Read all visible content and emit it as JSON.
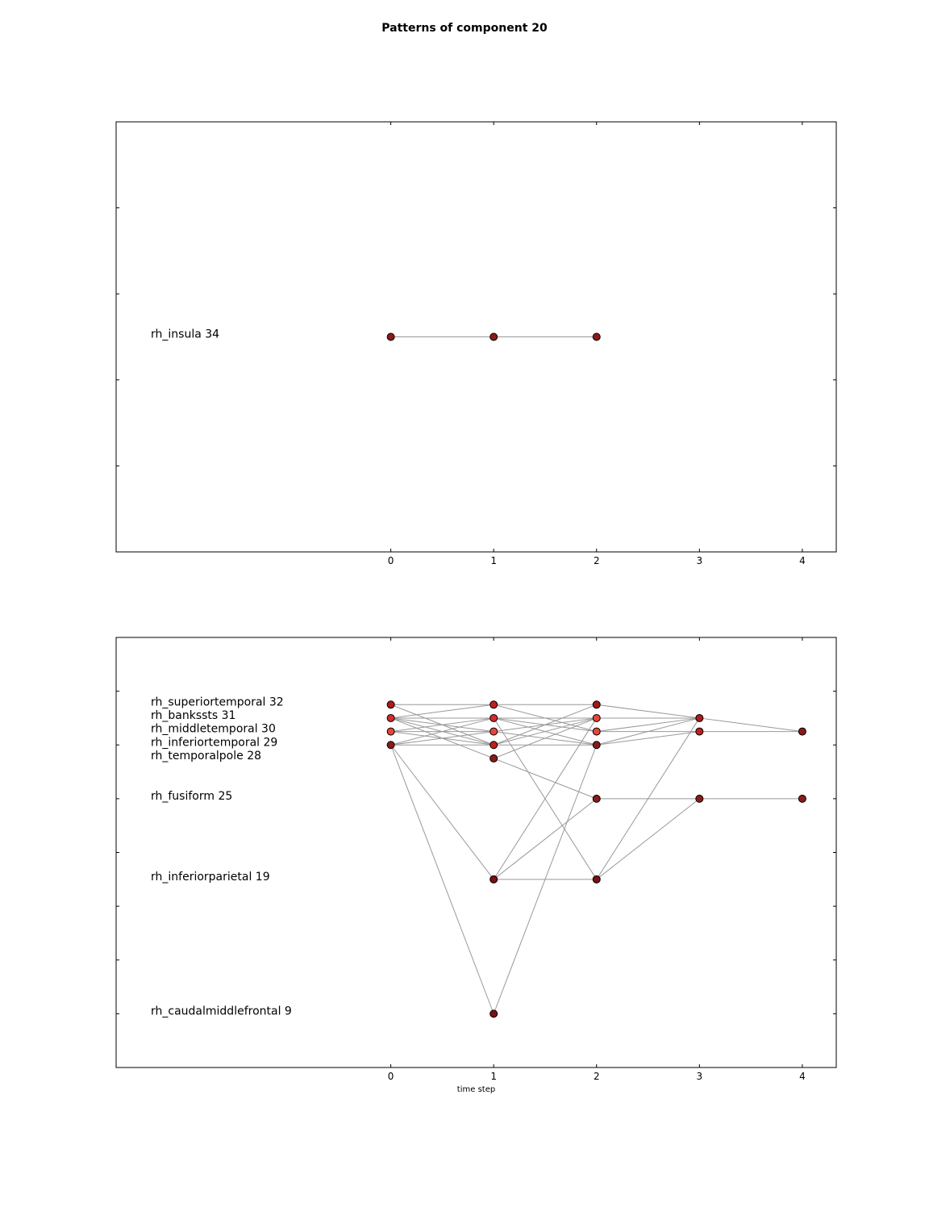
{
  "figure_title": "Patterns of component 20",
  "chart_data": [
    {
      "type": "scatter",
      "subtype": "network",
      "xlabel": "",
      "xticks": [
        0,
        1,
        2,
        3,
        4
      ],
      "xlim": [
        -2.67,
        4.33
      ],
      "ylim": [
        29,
        39
      ],
      "y_tick_count": 4,
      "node_fill": "#8b1a1a",
      "edge_color": "#999999",
      "labels": [
        {
          "text": "rh_insula 34",
          "y": 34
        }
      ],
      "nodes": [
        {
          "x": 0,
          "y": 34,
          "color": "#8b1a1a"
        },
        {
          "x": 1,
          "y": 34,
          "color": "#8b1a1a"
        },
        {
          "x": 2,
          "y": 34,
          "color": "#8b1a1a"
        }
      ],
      "edges": [
        [
          0,
          34,
          1,
          34
        ],
        [
          1,
          34,
          2,
          34
        ]
      ]
    },
    {
      "type": "scatter",
      "subtype": "network",
      "xlabel": "time step",
      "xticks": [
        0,
        1,
        2,
        3,
        4
      ],
      "xlim": [
        -2.67,
        4.33
      ],
      "ylim": [
        5,
        37
      ],
      "y_tick_count": 7,
      "node_fill": "#8b1a1a",
      "edge_color": "#999999",
      "labels": [
        {
          "text": "rh_superiortemporal 32",
          "y": 32
        },
        {
          "text": "rh_bankssts 31",
          "y": 31
        },
        {
          "text": "rh_middletemporal 30",
          "y": 30
        },
        {
          "text": "rh_inferiortemporal 29",
          "y": 29
        },
        {
          "text": "rh_temporalpole 28",
          "y": 28
        },
        {
          "text": "rh_fusiform 25",
          "y": 25
        },
        {
          "text": "rh_inferiorparietal 19",
          "y": 19
        },
        {
          "text": "rh_caudalmiddlefrontal 9",
          "y": 9
        }
      ],
      "nodes": [
        {
          "x": 0,
          "y": 32,
          "color": "#b01a1a"
        },
        {
          "x": 0,
          "y": 31,
          "color": "#d62a2a"
        },
        {
          "x": 0,
          "y": 30,
          "color": "#e8453a"
        },
        {
          "x": 0,
          "y": 29,
          "color": "#8b1a1a"
        },
        {
          "x": 1,
          "y": 32,
          "color": "#c21f1f"
        },
        {
          "x": 1,
          "y": 31,
          "color": "#d62a2a"
        },
        {
          "x": 1,
          "y": 30,
          "color": "#e8453a"
        },
        {
          "x": 1,
          "y": 29,
          "color": "#c21f1f"
        },
        {
          "x": 1,
          "y": 28,
          "color": "#8b1a1a"
        },
        {
          "x": 1,
          "y": 19,
          "color": "#7a1010"
        },
        {
          "x": 1,
          "y": 9,
          "color": "#7a1010"
        },
        {
          "x": 2,
          "y": 32,
          "color": "#a01818"
        },
        {
          "x": 2,
          "y": 31,
          "color": "#e8453a"
        },
        {
          "x": 2,
          "y": 30,
          "color": "#e8453a"
        },
        {
          "x": 2,
          "y": 29,
          "color": "#8b1a1a"
        },
        {
          "x": 2,
          "y": 25,
          "color": "#8b1a1a"
        },
        {
          "x": 2,
          "y": 19,
          "color": "#7a1010"
        },
        {
          "x": 3,
          "y": 31,
          "color": "#b01a1a"
        },
        {
          "x": 3,
          "y": 30,
          "color": "#c21f1f"
        },
        {
          "x": 3,
          "y": 25,
          "color": "#8b1a1a"
        },
        {
          "x": 4,
          "y": 30,
          "color": "#8b1a1a"
        },
        {
          "x": 4,
          "y": 25,
          "color": "#8b1a1a"
        }
      ],
      "edges": [
        [
          0,
          32,
          1,
          32
        ],
        [
          0,
          32,
          1,
          29
        ],
        [
          0,
          31,
          1,
          32
        ],
        [
          0,
          31,
          1,
          31
        ],
        [
          0,
          31,
          1,
          30
        ],
        [
          0,
          31,
          1,
          29
        ],
        [
          0,
          31,
          1,
          28
        ],
        [
          0,
          30,
          1,
          31
        ],
        [
          0,
          30,
          1,
          30
        ],
        [
          0,
          30,
          1,
          29
        ],
        [
          0,
          29,
          1,
          31
        ],
        [
          0,
          29,
          1,
          30
        ],
        [
          0,
          29,
          1,
          29
        ],
        [
          0,
          29,
          1,
          19
        ],
        [
          0,
          29,
          1,
          9
        ],
        [
          1,
          32,
          2,
          32
        ],
        [
          1,
          32,
          2,
          30
        ],
        [
          1,
          31,
          2,
          31
        ],
        [
          1,
          31,
          2,
          30
        ],
        [
          1,
          31,
          2,
          29
        ],
        [
          1,
          31,
          2,
          19
        ],
        [
          1,
          30,
          2,
          31
        ],
        [
          1,
          30,
          2,
          29
        ],
        [
          1,
          29,
          2,
          32
        ],
        [
          1,
          29,
          2,
          31
        ],
        [
          1,
          29,
          2,
          29
        ],
        [
          1,
          28,
          2,
          31
        ],
        [
          1,
          28,
          2,
          25
        ],
        [
          1,
          19,
          2,
          31
        ],
        [
          1,
          19,
          2,
          25
        ],
        [
          1,
          19,
          2,
          19
        ],
        [
          1,
          9,
          2,
          29
        ],
        [
          2,
          32,
          3,
          31
        ],
        [
          2,
          31,
          3,
          31
        ],
        [
          2,
          30,
          3,
          31
        ],
        [
          2,
          30,
          3,
          30
        ],
        [
          2,
          29,
          3,
          31
        ],
        [
          2,
          29,
          3,
          30
        ],
        [
          2,
          19,
          3,
          31
        ],
        [
          2,
          19,
          3,
          25
        ],
        [
          2,
          25,
          3,
          25
        ],
        [
          3,
          31,
          4,
          30
        ],
        [
          3,
          30,
          4,
          30
        ],
        [
          3,
          25,
          4,
          25
        ]
      ]
    }
  ]
}
